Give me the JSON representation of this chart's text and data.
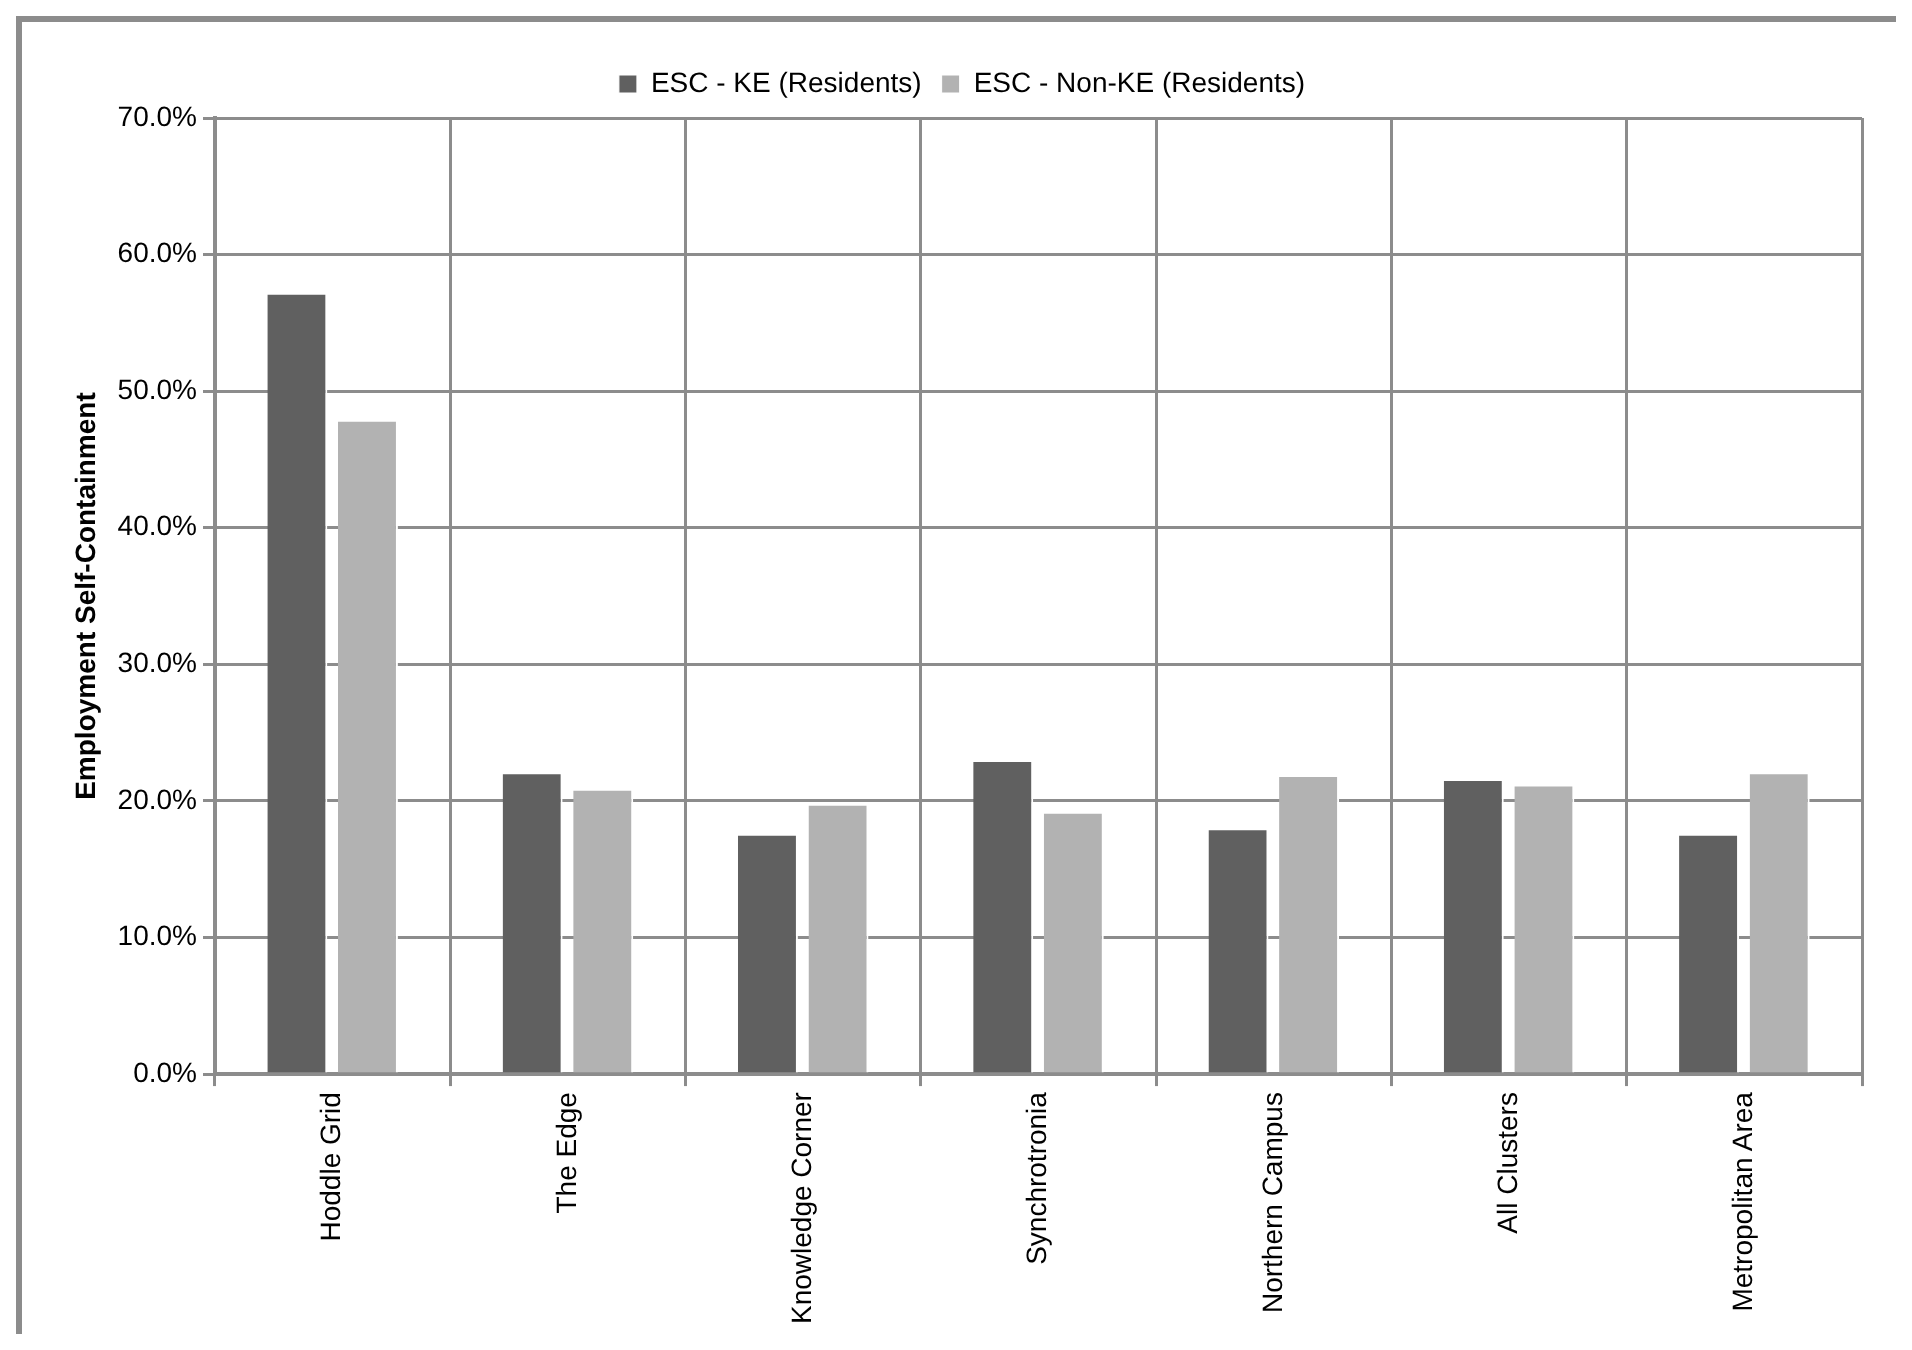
{
  "chart_data": {
    "type": "bar",
    "ylabel": "Employment Self-Containment",
    "categories": [
      "Hoddle Grid",
      "The Edge",
      "Knowledge Corner",
      "Synchrotronia",
      "Northern Campus",
      "All Clusters",
      "Metropolitan Area"
    ],
    "series": [
      {
        "name": "ESC - KE (Residents)",
        "color": "#606060",
        "values": [
          57.2,
          22.1,
          17.6,
          23.0,
          18.0,
          21.6,
          17.6
        ]
      },
      {
        "name": "ESC - Non-KE (Residents)",
        "color": "#b2b2b2",
        "values": [
          47.9,
          20.9,
          19.8,
          19.2,
          21.9,
          21.2,
          22.1
        ]
      }
    ],
    "ylim": [
      0,
      70
    ],
    "yticks": [
      {
        "value": 0,
        "label": "0.0%"
      },
      {
        "value": 10,
        "label": "10.0%"
      },
      {
        "value": 20,
        "label": "20.0%"
      },
      {
        "value": 30,
        "label": "30.0%"
      },
      {
        "value": 40,
        "label": "40.0%"
      },
      {
        "value": 50,
        "label": "50.0%"
      },
      {
        "value": 60,
        "label": "60.0%"
      },
      {
        "value": 70,
        "label": "70.0%"
      }
    ],
    "grid": true,
    "legend": "top"
  }
}
